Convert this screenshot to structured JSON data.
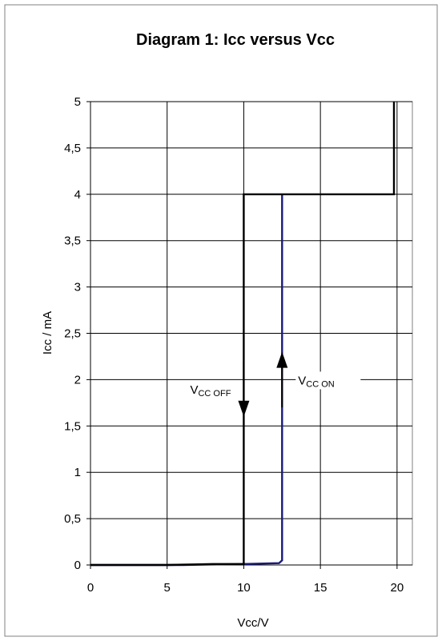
{
  "chart_data": {
    "type": "line",
    "title": "Diagram 1: Icc versus Vcc",
    "xlabel": "Vcc/V",
    "ylabel": "Icc / mA",
    "xlim": [
      0,
      21
    ],
    "ylim": [
      0,
      5
    ],
    "x_ticks": [
      0,
      5,
      10,
      15,
      20
    ],
    "x_tick_labels": [
      "0",
      "5",
      "10",
      "15",
      "20"
    ],
    "y_ticks": [
      0,
      0.5,
      1,
      1.5,
      2,
      2.5,
      3,
      3.5,
      4,
      4.5,
      5
    ],
    "y_tick_labels": [
      "0",
      "0,5",
      "1",
      "1,5",
      "2",
      "2,5",
      "3",
      "3,5",
      "4",
      "4,5",
      "5"
    ],
    "grid": true,
    "legend": "none",
    "series": [
      {
        "color": "#000000",
        "x": [
          0,
          5,
          8,
          10,
          10,
          19.8,
          19.8
        ],
        "y": [
          0,
          0,
          0.01,
          0.01,
          4,
          4,
          5
        ]
      },
      {
        "color": "#1a1a7a",
        "x": [
          0,
          6,
          10,
          12.3,
          12.5,
          12.5
        ],
        "y": [
          0,
          0,
          0.01,
          0.02,
          0.05,
          4
        ]
      }
    ],
    "annotations": [
      {
        "main": "V",
        "sub": "CC OFF",
        "direction": "down",
        "x": 10,
        "y_from": 2.2,
        "y_to": 1.6
      },
      {
        "main": "V",
        "sub": "CC ON",
        "direction": "up",
        "x": 12.5,
        "y_from": 1.7,
        "y_to": 2.3
      }
    ]
  }
}
